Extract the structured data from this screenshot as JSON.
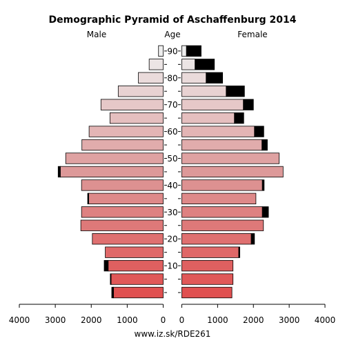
{
  "chart_data": {
    "type": "bar",
    "title": "Demographic Pyramid of Aschaffenburg 2014",
    "male_label": "Male",
    "age_label": "Age",
    "female_label": "Female",
    "footer": "www.iz.sk/RDE261",
    "age_tick_labels": [
      "10",
      "20",
      "30",
      "40",
      "50",
      "60",
      "70",
      "80",
      "90"
    ],
    "age_tick_values": [
      10,
      20,
      30,
      40,
      50,
      60,
      70,
      80,
      90
    ],
    "x_ticks_left": [
      "4000",
      "3000",
      "2000",
      "1000",
      "0"
    ],
    "x_ticks_right": [
      "0",
      "1000",
      "2000",
      "3000",
      "4000"
    ],
    "xlim": [
      0,
      4000
    ],
    "age_groups_start": [
      0,
      5,
      10,
      15,
      20,
      25,
      30,
      35,
      40,
      45,
      50,
      55,
      60,
      65,
      70,
      75,
      80,
      85,
      90
    ],
    "male_values": [
      1380,
      1450,
      1530,
      1610,
      1970,
      2290,
      2270,
      2070,
      2270,
      2860,
      2710,
      2260,
      2060,
      1480,
      1730,
      1250,
      690,
      390,
      130
    ],
    "male_excess": [
      50,
      20,
      110,
      0,
      0,
      0,
      0,
      30,
      0,
      60,
      0,
      0,
      0,
      0,
      0,
      0,
      0,
      0,
      0
    ],
    "female_values": [
      1400,
      1430,
      1430,
      1590,
      1940,
      2280,
      2250,
      2070,
      2250,
      2830,
      2720,
      2240,
      2030,
      1470,
      1720,
      1240,
      680,
      370,
      130
    ],
    "female_excess": [
      0,
      0,
      0,
      30,
      90,
      0,
      170,
      0,
      50,
      0,
      0,
      150,
      260,
      260,
      280,
      510,
      460,
      540,
      410
    ],
    "colors": {
      "bottom": "#e05050",
      "middle": "#dd9999",
      "top": "#eeeeee",
      "excess": "#000000",
      "outline": "#000000"
    }
  }
}
